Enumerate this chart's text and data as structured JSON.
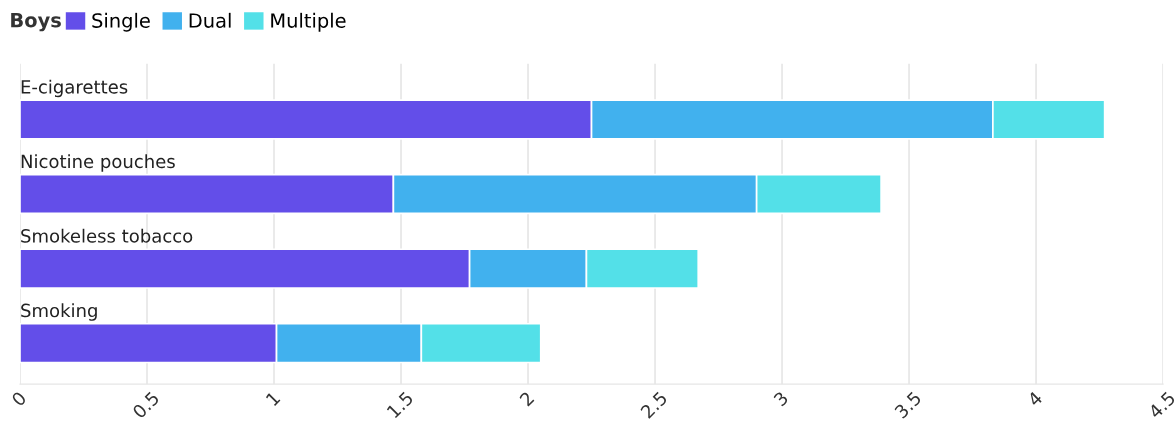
{
  "chart_data": {
    "type": "bar",
    "orientation": "horizontal",
    "stacked": true,
    "legend_title": "Boys",
    "legend": "top left",
    "categories": [
      "E-cigarettes",
      "Nicotine pouches",
      "Smokeless tobacco",
      "Smoking"
    ],
    "series": [
      {
        "name": "Single",
        "color": "#634ee9",
        "values": [
          2.25,
          1.47,
          1.77,
          1.01
        ]
      },
      {
        "name": "Dual",
        "color": "#41b1ee",
        "values": [
          1.58,
          1.43,
          0.46,
          0.57
        ]
      },
      {
        "name": "Multiple",
        "color": "#53e0e8",
        "values": [
          0.44,
          0.49,
          0.44,
          0.47
        ]
      }
    ],
    "xlim": [
      0,
      4.5
    ],
    "xticks": [
      0,
      0.5,
      1,
      1.5,
      2,
      2.5,
      3,
      3.5,
      4,
      4.5
    ],
    "grid": "x"
  }
}
